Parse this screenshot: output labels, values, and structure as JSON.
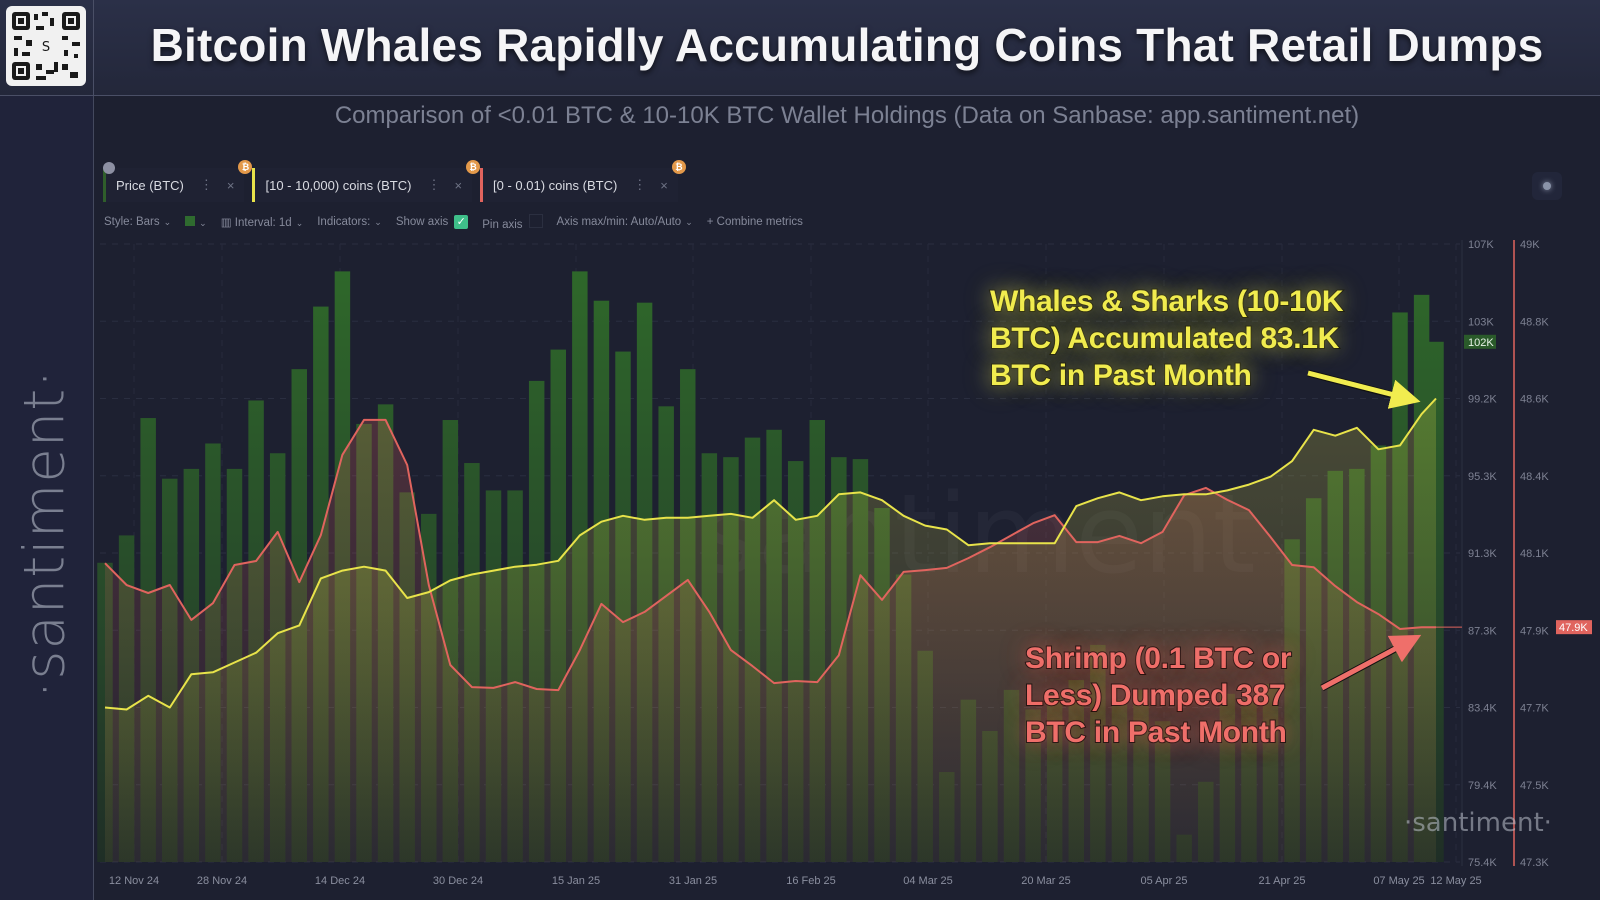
{
  "header": {
    "title": "Bitcoin Whales Rapidly Accumulating Coins That Retail Dumps",
    "subtitle": "Comparison of <0.01 BTC & 10-10K BTC Wallet Holdings (Data on Sanbase: app.santiment.net)",
    "logo_text": "·santiment·",
    "qr_icon": "qr-code"
  },
  "metric_tabs": [
    {
      "label": "Price (BTC)",
      "color": "#3a6b33",
      "icon": "lock-icon"
    },
    {
      "label": "[10 - 10,000) coins (BTC)",
      "color": "#e8e34a",
      "icon": "bitcoin-icon"
    },
    {
      "label": "[0 - 0.01) coins (BTC)",
      "color": "#e0645e",
      "icon": "bitcoin-icon"
    }
  ],
  "tab_badge": "₿",
  "toolbar": {
    "style": "Style: Bars",
    "interval": "Interval: 1d",
    "indicators": "Indicators:",
    "show_axis": "Show axis",
    "show_axis_checked": true,
    "pin_axis": "Pin axis",
    "pin_axis_checked": false,
    "axis_maxmin": "Axis max/min: Auto/Auto",
    "combine": "Combine metrics"
  },
  "watermark": "santiment",
  "annotations": {
    "whales": [
      "Whales & Sharks (10-10K",
      "BTC) Accumulated 83.1K",
      "BTC in Past Month"
    ],
    "shrimp": [
      "Shrimp (0.1 BTC or",
      "Less) Dumped 387",
      "BTC in Past Month"
    ]
  },
  "chart_data": {
    "type": "bar+line",
    "title": "",
    "grid": true,
    "x_tick_labels": [
      "12 Nov 24",
      "28 Nov 24",
      "14 Dec 24",
      "30 Dec 24",
      "15 Jan 25",
      "31 Jan 25",
      "16 Feb 25",
      "04 Mar 25",
      "20 Mar 25",
      "05 Apr 25",
      "21 Apr 25",
      "07 May 25",
      "12 May 25"
    ],
    "price_axis": {
      "ticks": [
        "107K",
        "103K",
        "99.2K",
        "95.3K",
        "91.3K",
        "87.3K",
        "83.4K",
        "79.4K",
        "75.4K"
      ],
      "range": [
        75.4,
        107
      ],
      "current_label": "102K",
      "current_color": "#2a5a2a"
    },
    "shrimp_axis": {
      "ticks": [
        "49K",
        "48.8K",
        "48.6K",
        "48.4K",
        "48.1K",
        "47.9K",
        "47.7K",
        "47.5K",
        "47.3K"
      ],
      "range": [
        47.3,
        49
      ],
      "current_label": "47.9K",
      "current_color": "#e0645e"
    },
    "x": [
      "2024-11-08",
      "2024-11-11",
      "2024-11-14",
      "2024-11-17",
      "2024-11-20",
      "2024-11-23",
      "2024-11-26",
      "2024-11-29",
      "2024-12-02",
      "2024-12-05",
      "2024-12-08",
      "2024-12-11",
      "2024-12-14",
      "2024-12-17",
      "2024-12-20",
      "2024-12-23",
      "2024-12-26",
      "2024-12-29",
      "2025-01-01",
      "2025-01-04",
      "2025-01-07",
      "2025-01-10",
      "2025-01-13",
      "2025-01-16",
      "2025-01-19",
      "2025-01-22",
      "2025-01-25",
      "2025-01-28",
      "2025-01-31",
      "2025-02-03",
      "2025-02-06",
      "2025-02-09",
      "2025-02-12",
      "2025-02-15",
      "2025-02-18",
      "2025-02-21",
      "2025-02-24",
      "2025-02-27",
      "2025-03-02",
      "2025-03-05",
      "2025-03-08",
      "2025-03-11",
      "2025-03-14",
      "2025-03-17",
      "2025-03-20",
      "2025-03-23",
      "2025-03-26",
      "2025-03-29",
      "2025-04-01",
      "2025-04-04",
      "2025-04-07",
      "2025-04-10",
      "2025-04-13",
      "2025-04-16",
      "2025-04-19",
      "2025-04-22",
      "2025-04-25",
      "2025-04-28",
      "2025-05-01",
      "2025-05-04",
      "2025-05-07",
      "2025-05-10",
      "2025-05-12"
    ],
    "series": [
      {
        "name": "Price (BTC)",
        "type": "bar",
        "axis": "price",
        "color": "#2f5e2b",
        "unit": "K USD",
        "values": [
          90.7,
          92.1,
          98.1,
          95.0,
          95.5,
          96.8,
          95.5,
          99.0,
          96.3,
          100.6,
          103.8,
          105.6,
          97.8,
          98.8,
          94.3,
          93.2,
          98.0,
          95.8,
          94.4,
          94.4,
          100.0,
          101.6,
          105.6,
          104.1,
          101.5,
          104.0,
          98.7,
          100.6,
          96.3,
          96.1,
          97.1,
          97.5,
          95.9,
          98.0,
          96.1,
          96.0,
          93.5,
          90.1,
          86.2,
          80.0,
          83.7,
          82.1,
          84.2,
          83.2,
          84.0,
          84.7,
          86.5,
          83.7,
          84.2,
          82.6,
          76.8,
          79.5,
          84.0,
          83.7,
          84.5,
          91.9,
          94.0,
          95.4,
          95.5,
          96.7,
          103.5,
          104.4,
          102.0
        ]
      },
      {
        "name": "[10 - 10,000) coins (BTC)",
        "type": "line",
        "axis": "price",
        "color": "#e8e34a",
        "values": [
          83.3,
          83.2,
          83.9,
          83.3,
          85.0,
          85.1,
          85.6,
          86.1,
          87.1,
          87.5,
          89.9,
          90.3,
          90.5,
          90.3,
          88.9,
          89.2,
          89.8,
          90.1,
          90.3,
          90.5,
          90.6,
          90.8,
          92.1,
          92.8,
          93.1,
          92.9,
          93.0,
          93.0,
          93.1,
          93.2,
          93.0,
          93.9,
          92.9,
          93.1,
          94.2,
          94.3,
          93.9,
          93.1,
          92.6,
          92.4,
          91.6,
          91.7,
          91.7,
          91.7,
          91.7,
          93.6,
          94.0,
          94.3,
          93.9,
          94.1,
          94.2,
          94.2,
          94.4,
          94.7,
          95.1,
          95.9,
          97.5,
          97.2,
          97.6,
          96.5,
          96.7,
          98.3,
          99.1
        ]
      },
      {
        "name": "[0 - 0.01) coins (BTC)",
        "type": "line",
        "axis": "shrimp",
        "color": "#e0645e",
        "unit": "K BTC",
        "values": [
          48.122,
          48.062,
          48.04,
          48.062,
          47.966,
          48.012,
          48.117,
          48.128,
          48.208,
          48.07,
          48.199,
          48.42,
          48.516,
          48.516,
          48.392,
          48.062,
          47.842,
          47.781,
          47.779,
          47.795,
          47.776,
          47.773,
          47.883,
          48.01,
          47.96,
          47.988,
          48.032,
          48.076,
          47.988,
          47.883,
          47.839,
          47.792,
          47.798,
          47.795,
          47.869,
          48.089,
          48.021,
          48.098,
          48.103,
          48.109,
          48.136,
          48.166,
          48.199,
          48.232,
          48.254,
          48.18,
          48.18,
          48.197,
          48.177,
          48.208,
          48.309,
          48.329,
          48.296,
          48.268,
          48.194,
          48.117,
          48.111,
          48.059,
          48.015,
          47.982,
          47.941,
          47.946,
          47.946
        ]
      }
    ]
  }
}
